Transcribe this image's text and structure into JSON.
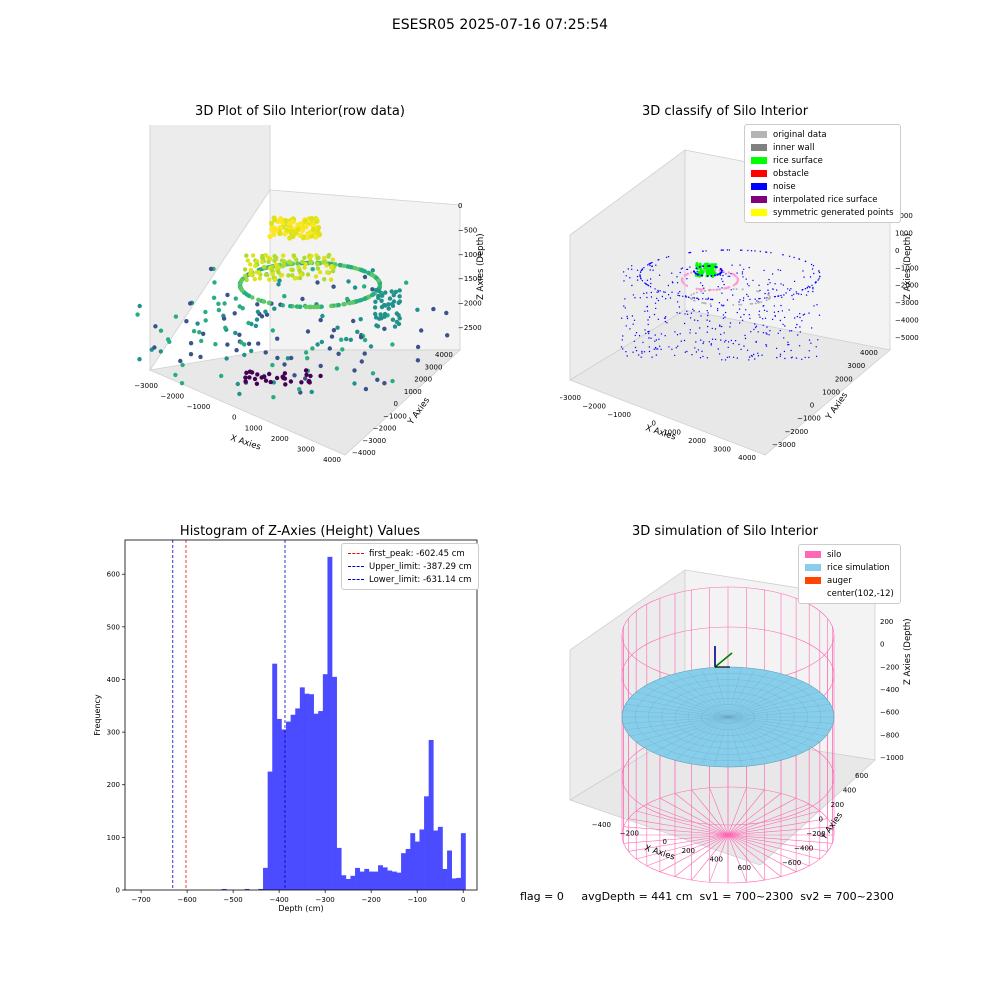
{
  "figure": {
    "suptitle": "ESESR05 2025-07-16 07:25:54",
    "footer": "flag = 0     avgDepth = 441 cm  sv1 = 700~2300  sv2 = 700~2300"
  },
  "chart_data": [
    {
      "type": "scatter",
      "title": "3D Plot of Silo Interior(row data)",
      "xlabel": "X Axies",
      "ylabel": "Y Axies",
      "zlabel": "Z Axies (Depth)",
      "x_ticks": [
        "−3000",
        "−2000",
        "−1000",
        "0",
        "1000",
        "2000",
        "3000",
        "4000"
      ],
      "y_ticks": [
        "−4000",
        "−3000",
        "−2000",
        "−1000",
        "0",
        "1000",
        "2000",
        "3000",
        "4000"
      ],
      "z_ticks": [
        "0",
        "−500",
        "−1000",
        "−1500",
        "−2000",
        "−2500"
      ],
      "colormap": "viridis"
    },
    {
      "type": "scatter",
      "title": "3D classify of Silo Interior",
      "xlabel": "X Axies",
      "ylabel": "Y Axies",
      "zlabel": "Z Axies (Depth)",
      "x_ticks": [
        "−3000",
        "−2000",
        "−1000",
        "0",
        "1000",
        "2000",
        "3000",
        "4000"
      ],
      "y_ticks": [
        "−3000",
        "−2000",
        "−1000",
        "0",
        "1000",
        "2000",
        "3000",
        "4000"
      ],
      "z_ticks": [
        "2000",
        "1000",
        "0",
        "−1000",
        "−2000",
        "−3000",
        "−4000",
        "−5000"
      ],
      "legend": [
        {
          "label": "original data",
          "color": "#b4b4b4"
        },
        {
          "label": "inner wall",
          "color": "#808080"
        },
        {
          "label": "rice surface",
          "color": "#00ff00"
        },
        {
          "label": "obstacle",
          "color": "#ff0000"
        },
        {
          "label": "noise",
          "color": "#0000ff"
        },
        {
          "label": "interpolated rice surface",
          "color": "#800080"
        },
        {
          "label": "symmetric generated points",
          "color": "#ffff00"
        }
      ]
    },
    {
      "type": "bar",
      "title": "Histogram of Z-Axies (Height) Values",
      "xlabel": "Depth (cm)",
      "ylabel": "Frequency",
      "xlim": [
        -735,
        30
      ],
      "ylim": [
        0,
        665
      ],
      "x_ticks": [
        -700,
        -600,
        -500,
        -400,
        -300,
        -200,
        -100,
        0
      ],
      "y_ticks": [
        0,
        100,
        200,
        300,
        400,
        500,
        600
      ],
      "bin_width": 10,
      "bin_starts": [
        -725,
        -715,
        -705,
        -695,
        -685,
        -675,
        -665,
        -655,
        -645,
        -635,
        -625,
        -615,
        -605,
        -595,
        -585,
        -575,
        -565,
        -555,
        -545,
        -535,
        -525,
        -515,
        -505,
        -495,
        -485,
        -475,
        -465,
        -455,
        -445,
        -435,
        -425,
        -415,
        -405,
        -395,
        -385,
        -375,
        -365,
        -355,
        -345,
        -335,
        -325,
        -315,
        -305,
        -295,
        -285,
        -275,
        -265,
        -255,
        -245,
        -235,
        -225,
        -215,
        -205,
        -195,
        -185,
        -175,
        -165,
        -155,
        -145,
        -135,
        -125,
        -115,
        -105,
        -95,
        -85,
        -75,
        -65,
        -55,
        -45,
        -35,
        -25,
        -15,
        -5
      ],
      "values": [
        2,
        0,
        0,
        0,
        0,
        2,
        0,
        0,
        2,
        42,
        225,
        430,
        325,
        305,
        320,
        333,
        345,
        385,
        373,
        372,
        335,
        340,
        410,
        633,
        405,
        80,
        28,
        21,
        27,
        42,
        35,
        40,
        35,
        35,
        47,
        43,
        37,
        35,
        33,
        70,
        78,
        108,
        92,
        115,
        178,
        285,
        113,
        120,
        40,
        75,
        22,
        23,
        108
      ],
      "bars_start_index": 20,
      "bar_color": "#4b4bff",
      "vlines": [
        {
          "label": "first_peak: -602.45 cm",
          "x": -602.45,
          "color": "#ff0000"
        },
        {
          "label": "Upper_limit: -387.29 cm",
          "x": -387.29,
          "color": "#0000cc"
        },
        {
          "label": "Lower_limit: -631.14 cm",
          "x": -631.14,
          "color": "#0000cc"
        }
      ]
    },
    {
      "type": "scatter",
      "title": "3D simulation of Silo Interior",
      "xlabel": "X Axies",
      "ylabel": "Y Axies",
      "zlabel": "Z Axies (Depth)",
      "x_ticks": [
        "−400",
        "−200",
        "0",
        "200",
        "400",
        "600"
      ],
      "y_ticks": [
        "−600",
        "−400",
        "−200",
        "0",
        "200",
        "400",
        "600"
      ],
      "z_ticks": [
        "200",
        "0",
        "−200",
        "−400",
        "−600",
        "−800",
        "−1000"
      ],
      "legend": [
        {
          "label": "silo",
          "color": "#ff69b4"
        },
        {
          "label": "rice simulation",
          "color": "#87ceeb"
        },
        {
          "label": "auger",
          "color": "#ff4500"
        },
        {
          "label": "center(102,-12)",
          "color": ""
        }
      ]
    }
  ]
}
